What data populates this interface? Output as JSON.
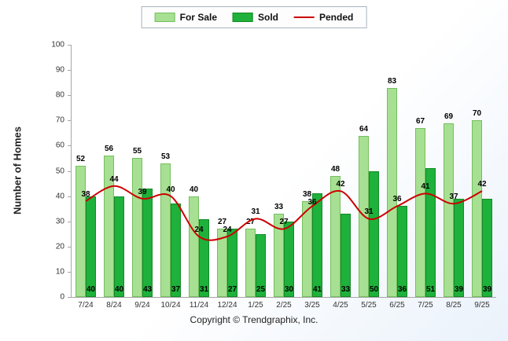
{
  "legend": {
    "for_sale": "For Sale",
    "sold": "Sold",
    "pended": "Pended"
  },
  "ylabel": "Number of Homes",
  "footer": "Copyright © Trendgraphix, Inc.",
  "colors": {
    "for_sale_fill": "#a7e092",
    "for_sale_border": "#74bf5e",
    "sold_fill": "#1eb13b",
    "sold_border": "#128a26",
    "pended_line": "#cc0000"
  },
  "chart_data": {
    "type": "bar",
    "title": "",
    "xlabel": "",
    "ylabel": "Number of Homes",
    "ylim": [
      0,
      100
    ],
    "ytick_step": 10,
    "grid": false,
    "legend_position": "top",
    "categories": [
      "7/24",
      "8/24",
      "9/24",
      "10/24",
      "11/24",
      "12/24",
      "1/25",
      "2/25",
      "3/25",
      "4/25",
      "5/25",
      "6/25",
      "7/25",
      "8/25",
      "9/25"
    ],
    "series": [
      {
        "name": "For Sale",
        "type": "bar",
        "color": "#a7e092",
        "values": [
          52,
          56,
          55,
          53,
          40,
          27,
          27,
          33,
          38,
          48,
          64,
          83,
          67,
          69,
          70
        ]
      },
      {
        "name": "Sold",
        "type": "bar",
        "color": "#1eb13b",
        "values": [
          40,
          40,
          43,
          37,
          31,
          27,
          25,
          30,
          41,
          33,
          50,
          36,
          51,
          39,
          39
        ]
      },
      {
        "name": "Pended",
        "type": "line",
        "color": "#cc0000",
        "values": [
          38,
          44,
          39,
          40,
          24,
          24,
          31,
          27,
          36,
          42,
          31,
          36,
          41,
          37,
          42
        ]
      }
    ]
  }
}
